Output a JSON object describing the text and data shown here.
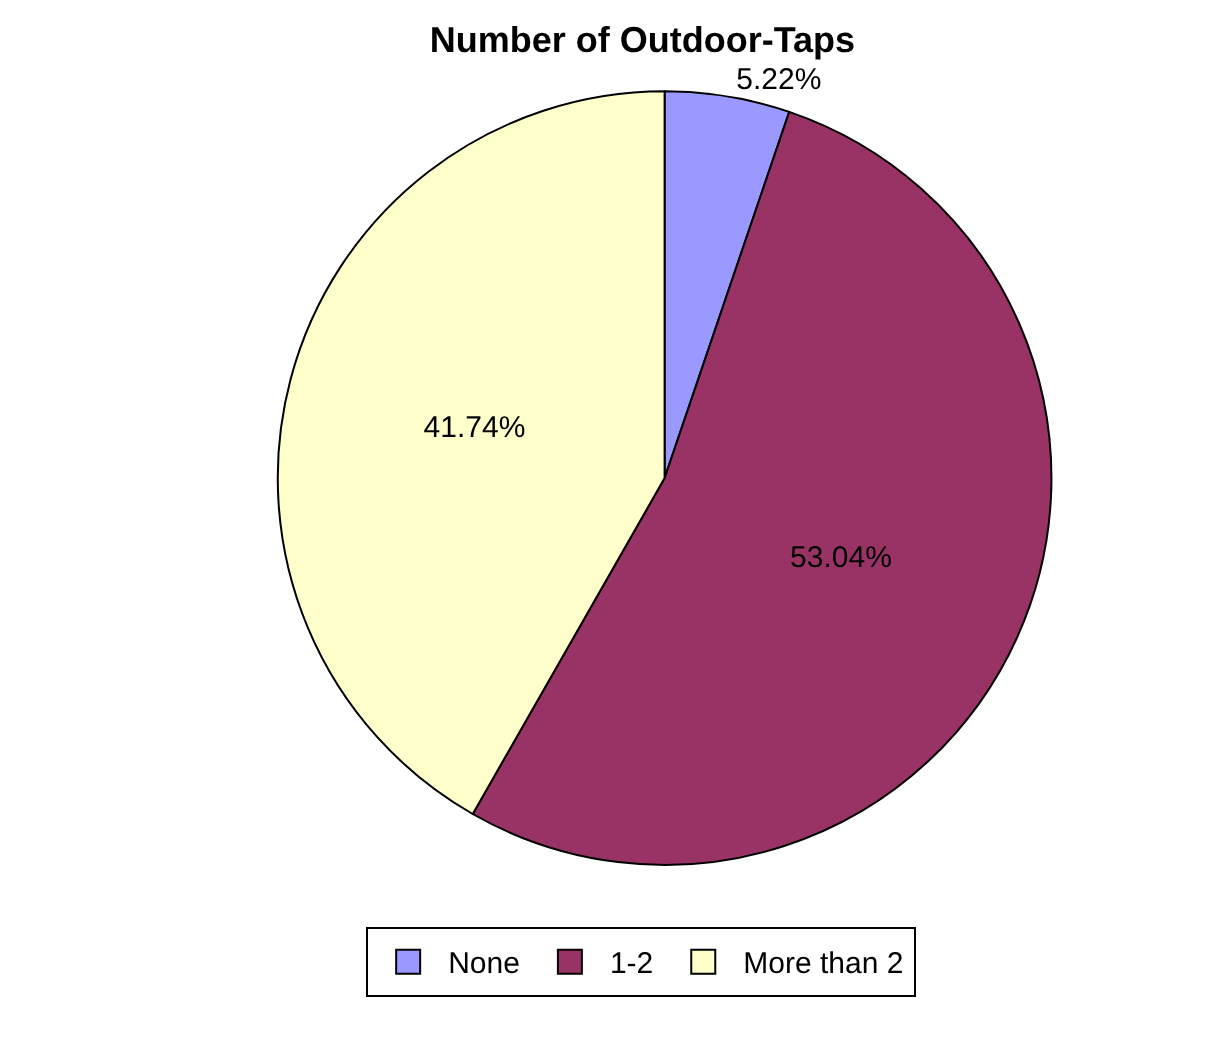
{
  "chart_data": {
    "type": "pie",
    "title": "Number of Outdoor-Taps",
    "categories": [
      "None",
      "1-2",
      "More than 2"
    ],
    "values": [
      5.22,
      53.04,
      41.74
    ],
    "colors": [
      "#9999ff",
      "#993366",
      "#ffffcc"
    ],
    "value_labels": [
      "5.22%",
      "53.04%",
      "41.74%"
    ],
    "legend": "bottom"
  }
}
